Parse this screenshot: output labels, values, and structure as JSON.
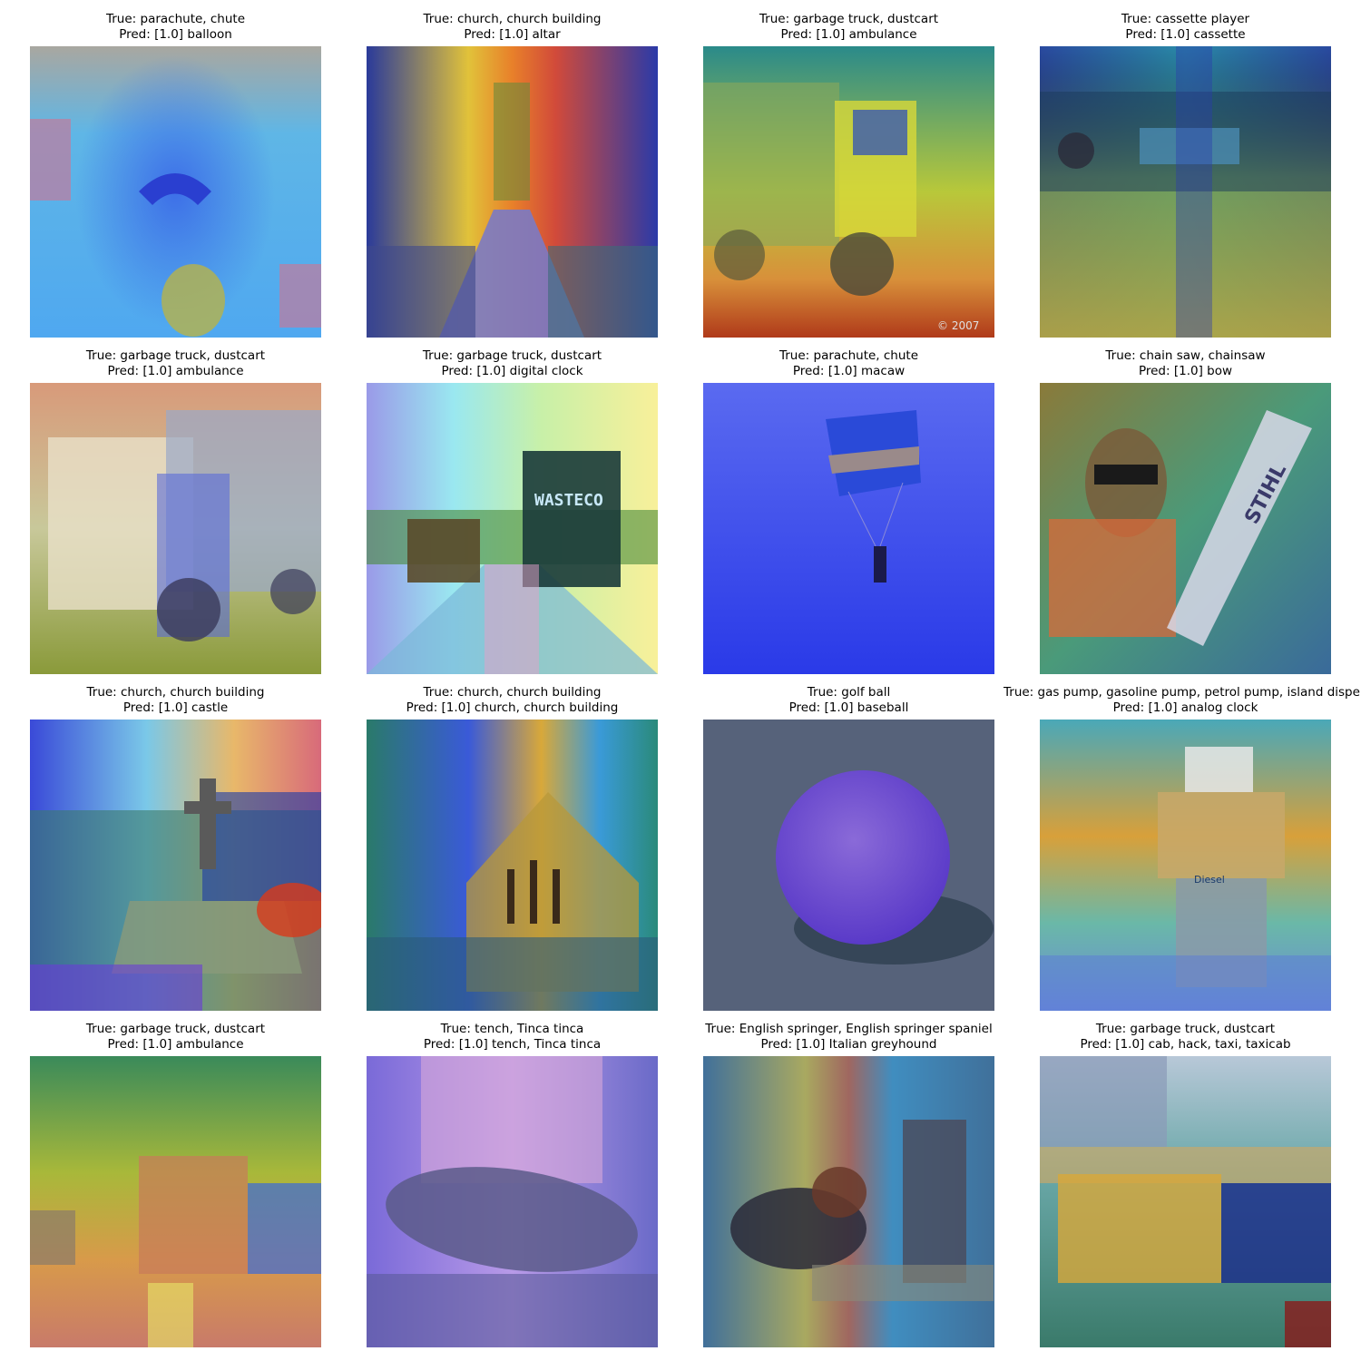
{
  "panels": [
    {
      "true_label": "True: parachute, chute",
      "pred_label": "Pred: [1.0] balloon"
    },
    {
      "true_label": "True: church, church building",
      "pred_label": "Pred: [1.0] altar"
    },
    {
      "true_label": "True: garbage truck, dustcart",
      "pred_label": "Pred: [1.0] ambulance"
    },
    {
      "true_label": "True: cassette player",
      "pred_label": "Pred: [1.0] cassette"
    },
    {
      "true_label": "True: garbage truck, dustcart",
      "pred_label": "Pred: [1.0] ambulance"
    },
    {
      "true_label": "True: garbage truck, dustcart",
      "pred_label": "Pred: [1.0] digital clock"
    },
    {
      "true_label": "True: parachute, chute",
      "pred_label": "Pred: [1.0] macaw"
    },
    {
      "true_label": "True: chain saw, chainsaw",
      "pred_label": "Pred: [1.0] bow"
    },
    {
      "true_label": "True: church, church building",
      "pred_label": "Pred: [1.0] castle"
    },
    {
      "true_label": "True: church, church building",
      "pred_label": "Pred: [1.0] church, church building"
    },
    {
      "true_label": "True: golf ball",
      "pred_label": "Pred: [1.0] baseball"
    },
    {
      "true_label": "True: gas pump, gasoline pump, petrol pump, island dispenser",
      "pred_label": "Pred: [1.0] analog clock"
    },
    {
      "true_label": "True: garbage truck, dustcart",
      "pred_label": "Pred: [1.0] ambulance"
    },
    {
      "true_label": "True: tench, Tinca tinca",
      "pred_label": "Pred: [1.0] tench, Tinca tinca"
    },
    {
      "true_label": "True: English springer, English springer spaniel",
      "pred_label": "Pred: [1.0] Italian greyhound"
    },
    {
      "true_label": "True: garbage truck, dustcart",
      "pred_label": "Pred: [1.0] cab, hack, taxi, taxicab"
    }
  ],
  "image_texts": {
    "wasteco": "WASTECO",
    "stihl": "STIHL",
    "diesel": "Diesel",
    "copyright": "© 2007"
  }
}
